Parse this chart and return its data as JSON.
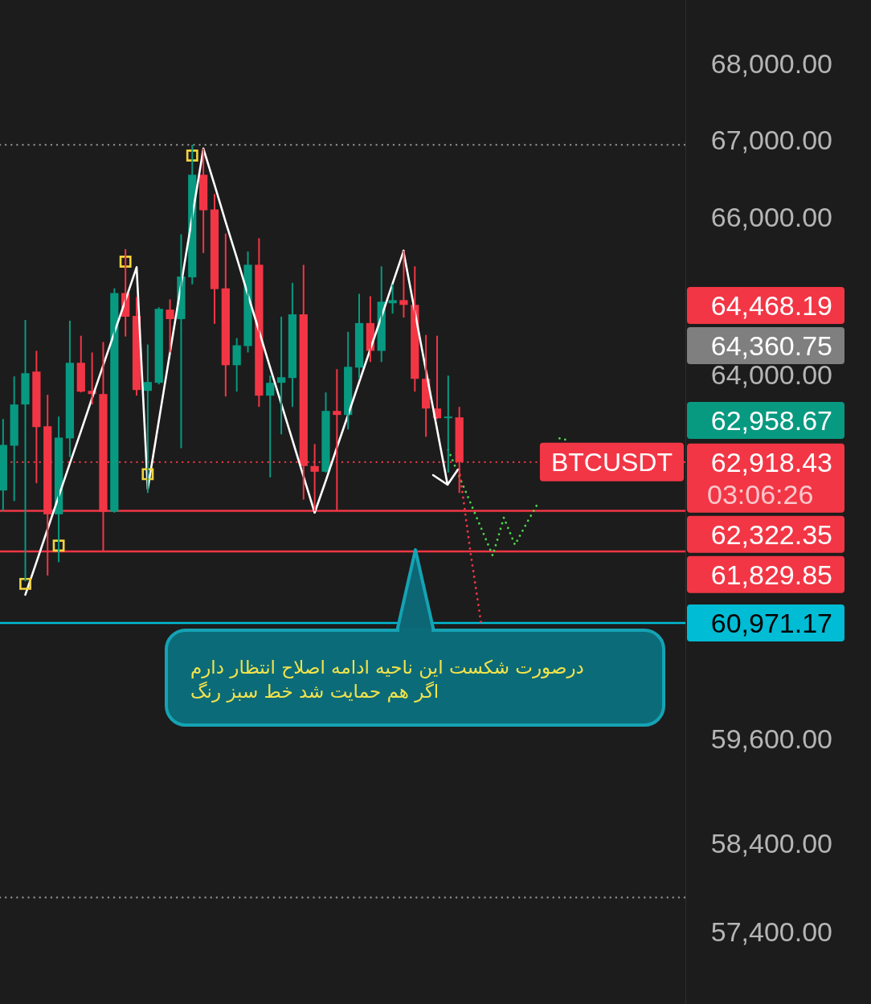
{
  "chart_data": {
    "type": "candlestick",
    "log": true,
    "tick_labels": "y",
    "categories": [
      null,
      null,
      null,
      null,
      null,
      null,
      null,
      null,
      null,
      null,
      null,
      null,
      null,
      null,
      null,
      null,
      null,
      null,
      null,
      null,
      null,
      null,
      null,
      null,
      null,
      null,
      null,
      null,
      null,
      null,
      null,
      null,
      null,
      null,
      null,
      null,
      null,
      null,
      null,
      null,
      null,
      null,
      null,
      null,
      null,
      null,
      null,
      null,
      null,
      null,
      null,
      null,
      null,
      null,
      null,
      null,
      null,
      null,
      null,
      null,
      null,
      null
    ],
    "ylim": [
      56600,
      68860
    ],
    "yticks": [
      {
        "value": 57400,
        "label": "57,400.00"
      },
      {
        "value": 58400,
        "label": "58,400.00"
      },
      {
        "value": 59600,
        "label": "59,600.00"
      },
      {
        "value": 64000,
        "label": "64,000.00"
      },
      {
        "value": 66000,
        "label": "66,000.00"
      },
      {
        "value": 67000,
        "label": "67,000.00"
      },
      {
        "value": 68000,
        "label": "68,000.00"
      }
    ],
    "series": [
      {
        "name": "BTCUSDT",
        "ohlc": [
          [
            62570,
            63450,
            62320,
            63130
          ],
          [
            63120,
            63980,
            62440,
            63630
          ],
          [
            63630,
            64690,
            61470,
            64020
          ],
          [
            64040,
            64300,
            62660,
            63350
          ],
          [
            63360,
            63750,
            61540,
            62280
          ],
          [
            62280,
            63480,
            61700,
            63220
          ],
          [
            63210,
            64680,
            62980,
            64150
          ],
          [
            64150,
            64490,
            63780,
            63790
          ],
          [
            63800,
            64280,
            63630,
            63760
          ],
          [
            63760,
            64410,
            61830,
            62310
          ],
          [
            62310,
            65090,
            62300,
            65030
          ],
          [
            65030,
            65590,
            64480,
            64730
          ],
          [
            64740,
            64980,
            63740,
            63810
          ],
          [
            63800,
            64380,
            62540,
            63910
          ],
          [
            63900,
            64850,
            63880,
            64830
          ],
          [
            64820,
            64950,
            64280,
            64700
          ],
          [
            64700,
            65780,
            63090,
            65240
          ],
          [
            65230,
            66940,
            65140,
            66550
          ],
          [
            66550,
            66890,
            65540,
            66090
          ],
          [
            66100,
            66300,
            64640,
            65080
          ],
          [
            65090,
            65790,
            63730,
            64120
          ],
          [
            64120,
            64460,
            63790,
            64370
          ],
          [
            64360,
            65560,
            64280,
            65390
          ],
          [
            65390,
            65730,
            63600,
            63740
          ],
          [
            63740,
            63990,
            62730,
            63900
          ],
          [
            63900,
            64730,
            63260,
            63970
          ],
          [
            63960,
            65160,
            63600,
            64760
          ],
          [
            64760,
            65390,
            62460,
            62870
          ],
          [
            62870,
            63140,
            62320,
            62800
          ],
          [
            62800,
            63780,
            62790,
            63550
          ],
          [
            63550,
            64070,
            62320,
            63500
          ],
          [
            63500,
            64540,
            63320,
            64100
          ],
          [
            64090,
            65020,
            63950,
            64650
          ],
          [
            64650,
            64990,
            64160,
            64300
          ],
          [
            64300,
            65370,
            64160,
            64920
          ],
          [
            64900,
            65140,
            64770,
            64940
          ],
          [
            64940,
            65570,
            64720,
            64880
          ],
          [
            64880,
            65370,
            63790,
            63950
          ],
          [
            63950,
            64500,
            63230,
            63580
          ],
          [
            63580,
            64490,
            63450,
            63460
          ],
          [
            63460,
            63990,
            62790,
            63480
          ],
          [
            63470,
            63600,
            62540,
            62918.43
          ],
          null,
          null,
          null,
          null,
          null,
          null,
          null,
          null,
          null,
          null,
          null,
          null,
          null,
          null,
          null,
          null,
          null,
          null,
          null,
          null
        ],
        "colors": [
          "#089981",
          "#089981",
          "#089981",
          "#f23645",
          "#f23645",
          "#089981",
          "#089981",
          "#f23645",
          "#f23645",
          "#f23645",
          "#089981",
          "#f23645",
          "#f23645",
          "#089981",
          "#089981",
          "#f23645",
          "#089981",
          "#089981",
          "#f23645",
          "#f23645",
          "#f23645",
          "#089981",
          "#089981",
          "#f23645",
          "#089981",
          "#089981",
          "#089981",
          "#f23645",
          "#f23645",
          "#089981",
          "#f23645",
          "#089981",
          "#089981",
          "#f23645",
          "#089981",
          "#089981",
          "#f23645",
          "#f23645",
          "#f23645",
          "#f23645",
          "#089981",
          "#f23645",
          null,
          null,
          null,
          null,
          null,
          null,
          null,
          null,
          null,
          null,
          null,
          null,
          null,
          null,
          null,
          null,
          null,
          null,
          null,
          null
        ]
      },
      {
        "type": "line",
        "color": "#ffffff",
        "values": [
          null,
          null,
          61310,
          61700,
          62100,
          62500,
          62900,
          63300,
          63710,
          64120,
          64530,
          64940,
          65360,
          62590,
          63430,
          64280,
          65140,
          66010,
          66890,
          66420,
          65940,
          65480,
          65010,
          64550,
          64090,
          63640,
          63190,
          62740,
          62300,
          62690,
          63100,
          63500,
          63910,
          64320,
          64730,
          65150,
          65570,
          null,
          null,
          null,
          null,
          null,
          null,
          null,
          null,
          null,
          null,
          null,
          null,
          null,
          null,
          null,
          null,
          null,
          null,
          null,
          null,
          null,
          null,
          null,
          null,
          null
        ]
      },
      {
        "type": "scatter",
        "color": "#f2d43d",
        "marker": "square",
        "values": [
          null,
          null,
          61440,
          null,
          null,
          61900,
          null,
          null,
          null,
          null,
          null,
          65430,
          null,
          62770,
          null,
          null,
          null,
          66800,
          null,
          null,
          null,
          null,
          null,
          null,
          null,
          null,
          null,
          null,
          null,
          null,
          null,
          null,
          null,
          null,
          null,
          null,
          null,
          null,
          null,
          null,
          null,
          null,
          null,
          null,
          null,
          null,
          null,
          null,
          null,
          null,
          null,
          null,
          null,
          null,
          null,
          null,
          null,
          null,
          null,
          null,
          null,
          null
        ]
      },
      {
        "type": "line",
        "color": "#4cd44c",
        "line_style": "dotted",
        "values": [
          null,
          null,
          null,
          null,
          null,
          null,
          null,
          null,
          null,
          null,
          null,
          null,
          null,
          null,
          null,
          null,
          null,
          null,
          null,
          null,
          null,
          null,
          null,
          null,
          null,
          null,
          null,
          null,
          null,
          null,
          null,
          null,
          null,
          null,
          null,
          null,
          null,
          null,
          null,
          null,
          63070,
          62740,
          62420,
          62100,
          61780,
          62240,
          61910,
          62160,
          62400,
          null,
          63210,
          63180,
          null,
          null,
          null,
          null,
          null,
          null,
          null,
          null,
          null,
          null
        ]
      },
      {
        "type": "line",
        "color": "#f23645",
        "line_style": "dotted",
        "values": [
          null,
          null,
          null,
          null,
          null,
          null,
          null,
          null,
          null,
          null,
          null,
          null,
          null,
          null,
          null,
          null,
          null,
          null,
          null,
          null,
          null,
          null,
          null,
          null,
          null,
          null,
          null,
          null,
          null,
          null,
          null,
          null,
          null,
          null,
          null,
          null,
          null,
          null,
          null,
          null,
          null,
          62830,
          61820,
          60930,
          null,
          null,
          null,
          null,
          null,
          null,
          null,
          null,
          null,
          null,
          null,
          null,
          null,
          null,
          null,
          null,
          null,
          null
        ]
      }
    ],
    "ref_lines": [
      {
        "axis": "y",
        "value": 62918.43,
        "label": "62,918.43",
        "color": "#f23645",
        "line_style": "dotted"
      },
      {
        "axis": "y",
        "value": 62322.35,
        "label": "62,322.35",
        "color": "#f23645"
      },
      {
        "axis": "y",
        "value": 61829.85,
        "label": "61,829.85",
        "color": "#f23645"
      },
      {
        "axis": "y",
        "value": 60971.17,
        "label": "60,971.17",
        "color": "#00bcd4"
      },
      {
        "axis": "y",
        "value": 66940,
        "color": "#8c8c8c",
        "line_style": "dotted"
      },
      {
        "axis": "y",
        "value": 57790,
        "color": "#8c8c8c",
        "line_style": "dotted"
      }
    ],
    "annotations": [
      "64,468.19",
      "64,360.75",
      "62,958.67",
      "03:06:26",
      "درصورت شکست این ناحیه ادامه اصلاح انتظار دارم",
      "اگر هم حمایت شد خط سبز رنگ"
    ]
  }
}
